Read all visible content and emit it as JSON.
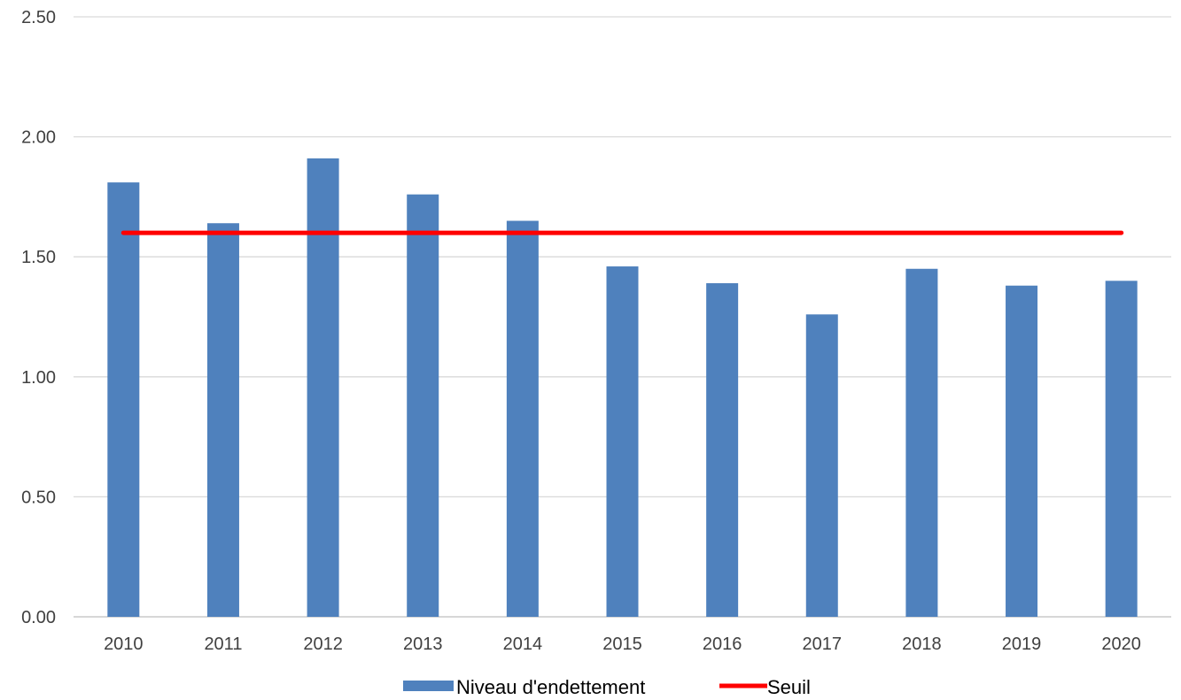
{
  "chart_data": {
    "type": "bar",
    "title": "",
    "xlabel": "",
    "ylabel": "",
    "categories": [
      "2010",
      "2011",
      "2012",
      "2013",
      "2014",
      "2015",
      "2016",
      "2017",
      "2018",
      "2019",
      "2020"
    ],
    "series": [
      {
        "name": "Niveau d'endettement",
        "type": "bar",
        "color": "#4F81BD",
        "values": [
          1.81,
          1.64,
          1.91,
          1.76,
          1.65,
          1.46,
          1.39,
          1.26,
          1.45,
          1.38,
          1.4
        ]
      },
      {
        "name": "Seuil",
        "type": "line",
        "color": "#FF0000",
        "values": [
          1.6,
          1.6,
          1.6,
          1.6,
          1.6,
          1.6,
          1.6,
          1.6,
          1.6,
          1.6,
          1.6
        ]
      }
    ],
    "ylim": [
      0,
      2.5
    ],
    "yticks": [
      "0.00",
      "0.50",
      "1.00",
      "1.50",
      "2.00",
      "2.50"
    ],
    "grid": true,
    "legend_position": "bottom"
  }
}
